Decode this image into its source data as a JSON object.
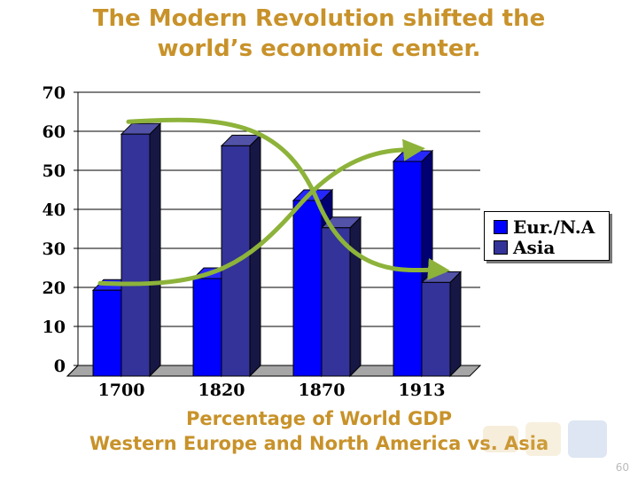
{
  "slide": {
    "title_line1": "The Modern Revolution shifted the",
    "title_line2": "world’s economic center.",
    "caption_line1": "Percentage of World GDP",
    "caption_line2": "Western Europe and North America vs. Asia",
    "page_number": "60"
  },
  "colors": {
    "title": "#c8922a",
    "eur": "#0000ff",
    "asia": "#333399",
    "arrow": "#8db33a"
  },
  "chart_data": {
    "type": "bar",
    "title": "",
    "xlabel": "",
    "ylabel": "",
    "categories": [
      "1700",
      "1820",
      "1870",
      "1913"
    ],
    "series": [
      {
        "name": "Eur./N.A",
        "values": [
          22,
          25,
          45,
          55
        ]
      },
      {
        "name": "Asia",
        "values": [
          62,
          59,
          38,
          24
        ]
      }
    ],
    "ylim": [
      0,
      70
    ],
    "yticks": [
      0,
      10,
      20,
      30,
      40,
      50,
      60,
      70
    ],
    "grid": true,
    "legend_position": "right",
    "annotations": [
      "curved arrow rising from 1700 Eur./N.A to 1913 Eur./N.A",
      "curved arrow falling from 1700 Asia to 1913 Asia"
    ]
  }
}
